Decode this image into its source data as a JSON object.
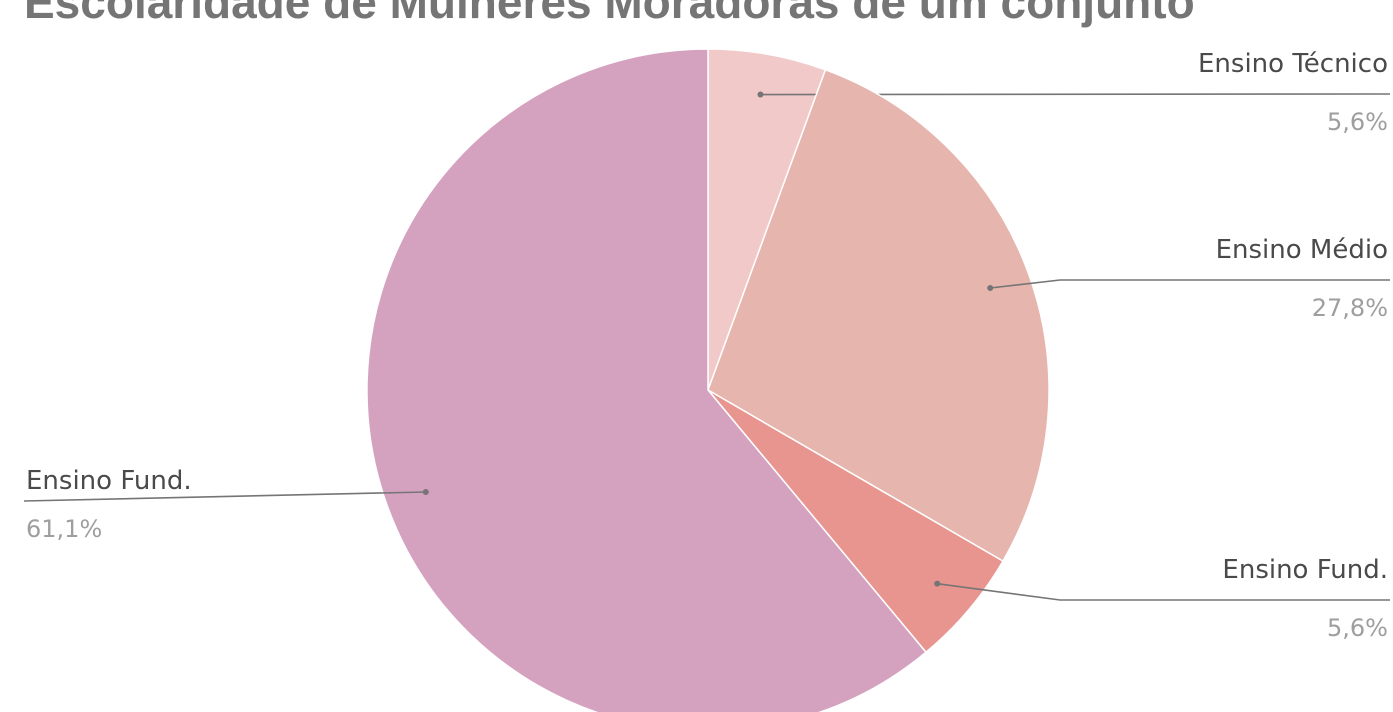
{
  "chart_data": {
    "type": "pie",
    "title": "Escolaridade de Mulheres Moradoras de um conjunto",
    "slices": [
      {
        "label": "Ensino Técnico",
        "value": 5.6,
        "value_label": "5,6%",
        "color": "#f2c9c9",
        "label_side": "right"
      },
      {
        "label": "Ensino Médio",
        "value": 27.8,
        "value_label": "27,8%",
        "color": "#e6b5ae",
        "label_side": "right"
      },
      {
        "label": "Ensino Fund.",
        "value": 5.6,
        "value_label": "5,6%",
        "color": "#e8958f",
        "label_side": "right"
      },
      {
        "label": "Ensino Fund.",
        "value": 61.1,
        "value_label": "61,1%",
        "color": "#d4a1bf",
        "label_side": "left"
      }
    ],
    "leader_color": "#757575",
    "label_color": "#4a4a4a",
    "value_color": "#9e9e9e",
    "title_color": "#757575"
  }
}
